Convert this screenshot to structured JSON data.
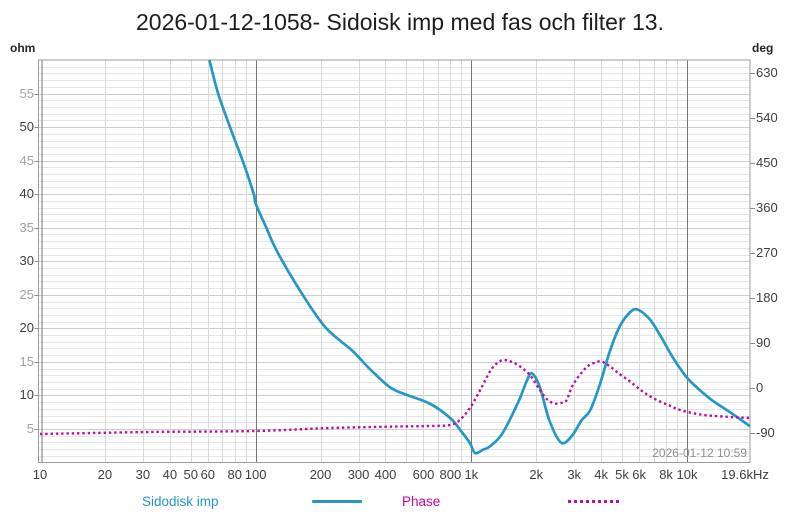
{
  "title": "2026-01-12-1058- Sidoisk imp med fas och filter 13.",
  "axes": {
    "left_unit": "ohm",
    "right_unit": "deg",
    "left_ticks": [
      55,
      50,
      45,
      40,
      35,
      30,
      25,
      20,
      15,
      10,
      5
    ],
    "right_ticks": [
      630,
      540,
      450,
      360,
      270,
      180,
      90,
      0,
      -90
    ],
    "x_ticks": [
      {
        "f": 10,
        "label": "10"
      },
      {
        "f": 20,
        "label": "20"
      },
      {
        "f": 30,
        "label": "30"
      },
      {
        "f": 40,
        "label": "40"
      },
      {
        "f": 50,
        "label": "50"
      },
      {
        "f": 60,
        "label": "60"
      },
      {
        "f": 80,
        "label": "80"
      },
      {
        "f": 100,
        "label": "100"
      },
      {
        "f": 200,
        "label": "200"
      },
      {
        "f": 300,
        "label": "300"
      },
      {
        "f": 400,
        "label": "400"
      },
      {
        "f": 600,
        "label": "600"
      },
      {
        "f": 800,
        "label": "800"
      },
      {
        "f": 1000,
        "label": "1k"
      },
      {
        "f": 2000,
        "label": "2k"
      },
      {
        "f": 3000,
        "label": "3k"
      },
      {
        "f": 4000,
        "label": "4k"
      },
      {
        "f": 5000,
        "label": "5k"
      },
      {
        "f": 6000,
        "label": "6k"
      },
      {
        "f": 8000,
        "label": "8k"
      },
      {
        "f": 10000,
        "label": "10k"
      },
      {
        "f": 19600,
        "label": "19.6kHz"
      }
    ]
  },
  "timestamp": "2026-01-12 10:59",
  "legend": [
    {
      "label": "Sidodisk imp",
      "color": "#2498C4",
      "style": "solid"
    },
    {
      "label": "Phase",
      "color": "#C4089E",
      "style": "dotted"
    }
  ],
  "colors": {
    "impedance": "#2498C4",
    "phase": "#C4089E",
    "grid_minor_h": "#e6e6e6",
    "grid_major_h": "#cdcdcd",
    "grid_minor_v": "#d9d9d9",
    "grid_decade_v": "#767676",
    "frame": "#9b9b9b",
    "tick_text_major": "#3f3f3f",
    "tick_text_minor": "#a2a2a2"
  },
  "chart_data": {
    "type": "line",
    "x_axis": {
      "scale": "log",
      "min": 10,
      "max": 19600,
      "unit": "Hz"
    },
    "y_left_axis": {
      "unit": "ohm",
      "min": 0,
      "max": 60,
      "tick_step": 5
    },
    "y_right_axis": {
      "unit": "deg",
      "min": -150,
      "max": 660,
      "tick_step": 90
    },
    "series": [
      {
        "name": "Sidodisk imp",
        "axis": "left",
        "style": "solid",
        "color": "#2498C4",
        "points": [
          [
            61,
            60
          ],
          [
            67,
            55
          ],
          [
            76,
            50
          ],
          [
            87,
            45
          ],
          [
            98,
            40
          ],
          [
            100,
            38.6
          ],
          [
            112,
            35
          ],
          [
            125,
            31.6
          ],
          [
            160,
            25.7
          ],
          [
            210,
            20.2
          ],
          [
            280,
            16.7
          ],
          [
            337,
            14.0
          ],
          [
            420,
            11.2
          ],
          [
            500,
            10.1
          ],
          [
            640,
            8.8
          ],
          [
            800,
            6.6
          ],
          [
            905,
            4.5
          ],
          [
            985,
            2.9
          ],
          [
            1040,
            1.4
          ],
          [
            1130,
            1.9
          ],
          [
            1220,
            2.4
          ],
          [
            1390,
            4.3
          ],
          [
            1640,
            8.8
          ],
          [
            1810,
            12.2
          ],
          [
            1910,
            13.3
          ],
          [
            2080,
            11.2
          ],
          [
            2300,
            6.3
          ],
          [
            2600,
            3.0
          ],
          [
            2900,
            3.8
          ],
          [
            3250,
            6.3
          ],
          [
            3560,
            7.8
          ],
          [
            3950,
            11.7
          ],
          [
            4400,
            16.7
          ],
          [
            4900,
            20.4
          ],
          [
            5450,
            22.4
          ],
          [
            5900,
            22.8
          ],
          [
            6700,
            21.4
          ],
          [
            7500,
            19.0
          ],
          [
            8400,
            16.2
          ],
          [
            9300,
            14.0
          ],
          [
            10300,
            12.2
          ],
          [
            12800,
            9.5
          ],
          [
            16000,
            7.4
          ],
          [
            19600,
            5.4
          ]
        ]
      },
      {
        "name": "Phase",
        "axis": "right",
        "style": "dotted",
        "color": "#C4089E",
        "points": [
          [
            10,
            -92
          ],
          [
            32,
            -88
          ],
          [
            100,
            -86
          ],
          [
            220,
            -80
          ],
          [
            465,
            -77
          ],
          [
            640,
            -76
          ],
          [
            800,
            -74
          ],
          [
            885,
            -64
          ],
          [
            985,
            -40
          ],
          [
            1100,
            -4
          ],
          [
            1220,
            33
          ],
          [
            1320,
            50
          ],
          [
            1430,
            56
          ],
          [
            1630,
            47
          ],
          [
            1870,
            26
          ],
          [
            2080,
            -4
          ],
          [
            2250,
            -23
          ],
          [
            2440,
            -31
          ],
          [
            2650,
            -29
          ],
          [
            2770,
            -24
          ],
          [
            2910,
            0
          ],
          [
            3060,
            16
          ],
          [
            3250,
            31
          ],
          [
            3450,
            43
          ],
          [
            3700,
            50
          ],
          [
            4000,
            53
          ],
          [
            4400,
            43
          ],
          [
            4900,
            27
          ],
          [
            5450,
            13
          ],
          [
            6050,
            -3
          ],
          [
            6700,
            -16
          ],
          [
            7500,
            -27
          ],
          [
            8400,
            -36
          ],
          [
            9300,
            -44
          ],
          [
            11500,
            -53
          ],
          [
            14600,
            -57
          ],
          [
            19600,
            -60
          ]
        ]
      }
    ]
  }
}
